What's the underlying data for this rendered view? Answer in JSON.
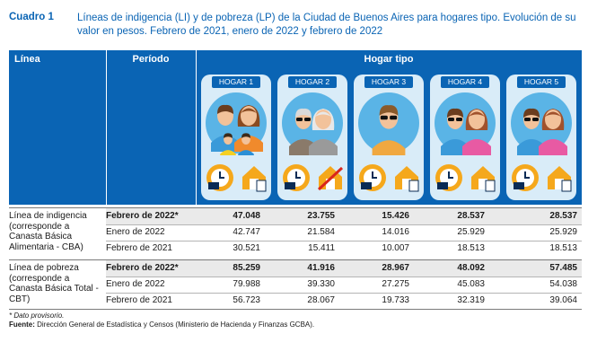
{
  "caption": {
    "label": "Cuadro 1",
    "title": "Líneas de indigencia (LI) y de pobreza (LP) de la Ciudad de Buenos Aires para hogares tipo. Evolución de su valor en pesos. Febrero de 2021, enero de 2022 y febrero de 2022"
  },
  "header": {
    "linea": "Línea",
    "periodo": "Período",
    "hogar_tipo": "Hogar tipo"
  },
  "hogares": [
    {
      "label": "HOGAR 1",
      "members": "couple-two-children",
      "icons": [
        "clock-icon",
        "house-icon"
      ]
    },
    {
      "label": "HOGAR 2",
      "members": "elderly-couple",
      "icons": [
        "clock-icon",
        "no-rent-icon"
      ]
    },
    {
      "label": "HOGAR 3",
      "members": "single-adult",
      "icons": [
        "clock-icon",
        "house-icon"
      ]
    },
    {
      "label": "HOGAR 4",
      "members": "adult-couple",
      "icons": [
        "clock-icon",
        "house-icon"
      ]
    },
    {
      "label": "HOGAR 5",
      "members": "adult-couple",
      "icons": [
        "clock-icon",
        "house-icon"
      ]
    }
  ],
  "groups": [
    {
      "label": "Línea de indigencia (corresponde a Canasta Básica Alimentaria - CBA)",
      "rows": [
        {
          "period": "Febrero de 2022*",
          "bold": true,
          "values": [
            "47.048",
            "23.755",
            "15.426",
            "28.537",
            "28.537"
          ]
        },
        {
          "period": "Enero de 2022",
          "bold": false,
          "values": [
            "42.747",
            "21.584",
            "14.016",
            "25.929",
            "25.929"
          ]
        },
        {
          "period": "Febrero de 2021",
          "bold": false,
          "values": [
            "30.521",
            "15.411",
            "10.007",
            "18.513",
            "18.513"
          ]
        }
      ]
    },
    {
      "label": "Línea de pobreza (corresponde a Canasta Básica Total - CBT)",
      "rows": [
        {
          "period": "Febrero de 2022*",
          "bold": true,
          "values": [
            "85.259",
            "41.916",
            "28.967",
            "48.092",
            "57.485"
          ]
        },
        {
          "period": "Enero de 2022",
          "bold": false,
          "values": [
            "79.988",
            "39.330",
            "27.275",
            "45.083",
            "54.038"
          ]
        },
        {
          "period": "Febrero de 2021",
          "bold": false,
          "values": [
            "56.723",
            "28.067",
            "19.733",
            "32.319",
            "39.064"
          ]
        }
      ]
    }
  ],
  "notes": {
    "provisional": "* Dato provisorio.",
    "source_label": "Fuente:",
    "source_text": "Dirección General de Estadística y Censos (Ministerio de Hacienda y Finanzas GCBA)."
  },
  "colors": {
    "header_blue": "#0a64b4",
    "panel_light_blue": "#d9ecf8",
    "icon_orange": "#f5a81c",
    "skin": "#f2c29a"
  }
}
